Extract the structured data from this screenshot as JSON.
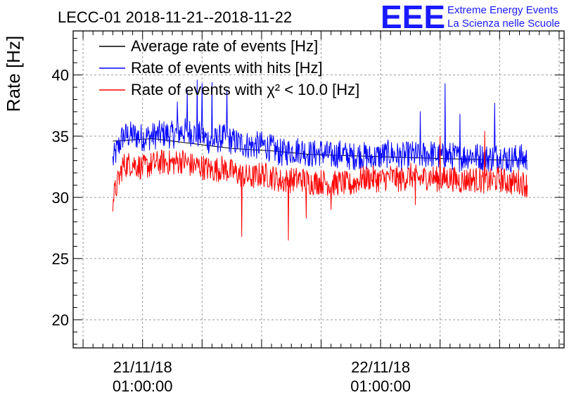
{
  "chart_data": {
    "type": "line",
    "title": "LECC-01 2018-11-21--2018-11-22",
    "ylabel": "Rate [Hz]",
    "xlabel": "",
    "ylim": [
      17.7,
      43.6
    ],
    "yticks": [
      20,
      25,
      30,
      35,
      40
    ],
    "x_ticks": [
      {
        "line1": "21/11/18",
        "line2": "01:00:00",
        "hour": 0
      },
      {
        "line1": "22/11/18",
        "line2": "01:00:00",
        "hour": 24
      }
    ],
    "xlim_hours": [
      -7,
      42.5
    ],
    "grid": true,
    "legend_placement": "top-left",
    "series": [
      {
        "name": "Average rate of events [Hz]",
        "color": "#000000",
        "x_hours": [
          -3,
          1,
          5,
          9,
          13,
          17,
          21,
          25,
          29,
          33,
          38.8
        ],
        "values": [
          34.6,
          34.8,
          34.4,
          34.0,
          33.8,
          33.5,
          33.4,
          33.3,
          33.2,
          33.1,
          33.0
        ]
      },
      {
        "name": "Rate of events with hits [Hz]",
        "color": "#0000ff",
        "x_hours": [
          -3.0,
          -2.0,
          -1.0,
          0.0,
          1.0,
          2.0,
          3.0,
          4.0,
          5.0,
          6.0,
          7.0,
          8.0,
          9.0,
          10.0,
          11.0,
          12.0,
          13.0,
          14.0,
          15.0,
          16.0,
          17.0,
          18.0,
          19.0,
          20.0,
          21.0,
          22.0,
          23.0,
          24.0,
          25.0,
          26.0,
          27.0,
          28.0,
          29.0,
          30.0,
          31.0,
          32.0,
          33.0,
          34.0,
          35.0,
          36.0,
          37.0,
          38.0,
          38.8
        ],
        "values": [
          33.0,
          35.0,
          35.1,
          34.9,
          35.0,
          35.2,
          35.1,
          35.4,
          35.3,
          35.0,
          34.5,
          34.9,
          34.6,
          34.4,
          34.2,
          34.3,
          34.0,
          33.6,
          33.8,
          33.9,
          33.5,
          33.7,
          33.4,
          33.6,
          33.3,
          33.5,
          33.2,
          33.4,
          33.6,
          33.3,
          33.5,
          33.4,
          33.6,
          33.3,
          33.4,
          33.2,
          33.5,
          33.3,
          33.2,
          33.4,
          33.1,
          33.3,
          33.0
        ],
        "spikes": [
          {
            "hour": 5.5,
            "value": 39.6
          },
          {
            "hour": 6.0,
            "value": 39.3
          },
          {
            "hour": 7.0,
            "value": 39.4
          },
          {
            "hour": 4.5,
            "value": 38.7
          },
          {
            "hour": 8.5,
            "value": 38.8
          },
          {
            "hour": 3.5,
            "value": 37.8
          },
          {
            "hour": 30.5,
            "value": 39.3
          },
          {
            "hour": 28.0,
            "value": 37.0
          },
          {
            "hour": 35.5,
            "value": 37.7
          },
          {
            "hour": 32.0,
            "value": 36.8
          }
        ]
      },
      {
        "name": "Rate of events with χ² < 10.0 [Hz]",
        "color": "#ff0000",
        "x_hours": [
          -3.0,
          -2.0,
          -1.0,
          0.0,
          1.0,
          2.0,
          3.0,
          4.0,
          5.0,
          6.0,
          7.0,
          8.0,
          9.0,
          10.0,
          11.0,
          12.0,
          13.0,
          14.0,
          15.0,
          16.0,
          17.0,
          18.0,
          19.0,
          20.0,
          21.0,
          22.0,
          23.0,
          24.0,
          25.0,
          26.0,
          27.0,
          28.0,
          29.0,
          30.0,
          31.0,
          32.0,
          33.0,
          34.0,
          35.0,
          36.0,
          37.0,
          38.0,
          38.8
        ],
        "values": [
          29.8,
          32.6,
          32.8,
          32.4,
          32.7,
          32.9,
          32.8,
          33.0,
          32.6,
          32.5,
          32.2,
          32.4,
          32.1,
          31.8,
          31.6,
          31.9,
          31.7,
          31.3,
          31.4,
          31.5,
          31.2,
          31.3,
          31.1,
          31.2,
          31.0,
          31.5,
          31.6,
          31.4,
          31.7,
          31.4,
          31.8,
          31.5,
          31.7,
          31.4,
          31.6,
          31.3,
          31.5,
          31.4,
          31.3,
          31.5,
          31.2,
          31.3,
          31.0
        ],
        "dips": [
          {
            "hour": 10.0,
            "value": 26.8
          },
          {
            "hour": 14.7,
            "value": 26.5
          },
          {
            "hour": 16.5,
            "value": 28.3
          },
          {
            "hour": 19.0,
            "value": 29.0
          },
          {
            "hour": 27.5,
            "value": 29.4
          }
        ],
        "spikes": [
          {
            "hour": 30.0,
            "value": 35.0
          },
          {
            "hour": 34.5,
            "value": 35.4
          }
        ]
      }
    ]
  },
  "logo": {
    "letters": "EEE",
    "line1": "Extreme Energy Events",
    "line2": "La Scienza nelle Scuole"
  }
}
